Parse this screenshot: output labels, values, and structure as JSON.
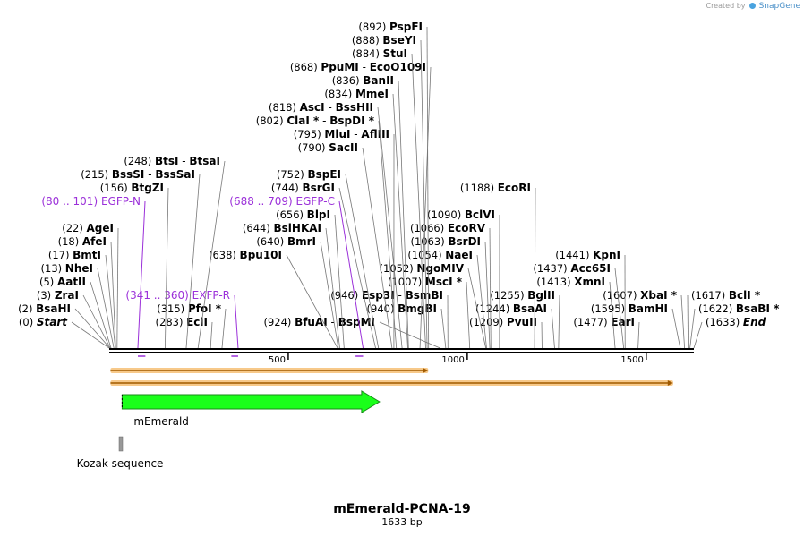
{
  "header": {
    "created_by": "Created by",
    "brand": "SnapGene"
  },
  "map": {
    "title": "mEmerald-PCNA-19",
    "length_label": "1633 bp",
    "total_bp": 1633
  },
  "colors": {
    "primer": "#9b30d9",
    "feature_green": "#1aff1a",
    "kozak": "#999999",
    "orf_fill": "#f7c98a",
    "orf_line": "#a05a00"
  },
  "ticks": [
    {
      "bp": 500,
      "label": "500"
    },
    {
      "bp": 1000,
      "label": "1000"
    },
    {
      "bp": 1500,
      "label": "1500"
    }
  ],
  "orfs": [
    {
      "start": 1,
      "end": 891,
      "direction": "forward"
    },
    {
      "start": 1,
      "end": 1575,
      "direction": "forward"
    }
  ],
  "features": [
    {
      "name": "mEmerald",
      "start": 36,
      "end": 755,
      "color": "#1aff1a",
      "type": "arrow"
    },
    {
      "name": "Kozak sequence",
      "start": 31,
      "end": 40,
      "color": "#999999",
      "type": "box"
    }
  ],
  "labels": [
    {
      "pos": "(0)",
      "name": "Start",
      "site": 0,
      "side": "L",
      "row": 0,
      "italic": true
    },
    {
      "pos": "(2)",
      "name": "BsaHI",
      "site": 2,
      "side": "L",
      "row": 1
    },
    {
      "pos": "(3)",
      "name": "ZraI",
      "site": 3,
      "side": "L",
      "row": 2
    },
    {
      "pos": "(5)",
      "name": "AatII",
      "site": 5,
      "side": "L",
      "row": 3
    },
    {
      "pos": "(13)",
      "name": "NheI",
      "site": 13,
      "side": "L",
      "row": 4
    },
    {
      "pos": "(17)",
      "name": "BmtI",
      "site": 17,
      "side": "L",
      "row": 5
    },
    {
      "pos": "(18)",
      "name": "AfeI",
      "site": 18,
      "side": "L",
      "row": 6
    },
    {
      "pos": "(22)",
      "name": "AgeI",
      "site": 22,
      "side": "L",
      "row": 7
    },
    {
      "pos": "(80 .. 101)",
      "name": "EGFP-N",
      "site": 80,
      "side": "L",
      "row": 9,
      "primer": true
    },
    {
      "pos": "(156)",
      "name": "BtgZI",
      "site": 156,
      "side": "L",
      "row": 10
    },
    {
      "pos": "(215)",
      "name": "BssSI",
      "name2": "BssSaI",
      "site": 215,
      "side": "L",
      "row": 11
    },
    {
      "pos": "(248)",
      "name": "BtsI",
      "name2": "BtsaI",
      "site": 248,
      "side": "L",
      "row": 12
    },
    {
      "pos": "(283)",
      "name": "EciI",
      "site": 283,
      "side": "L",
      "row": 0
    },
    {
      "pos": "(315)",
      "name": "PfoI",
      "star": true,
      "site": 315,
      "side": "L",
      "row": 1
    },
    {
      "pos": "(341 .. 360)",
      "name": "EXFP-R",
      "site": 360,
      "side": "L",
      "row": 2,
      "primer": true
    },
    {
      "pos": "(638)",
      "name": "Bpu10I",
      "site": 638,
      "side": "L",
      "row": 5
    },
    {
      "pos": "(640)",
      "name": "BmrI",
      "site": 640,
      "side": "L",
      "row": 6
    },
    {
      "pos": "(644)",
      "name": "BsiHKAI",
      "site": 644,
      "side": "L",
      "row": 7
    },
    {
      "pos": "(656)",
      "name": "BlpI",
      "site": 656,
      "side": "L",
      "row": 8
    },
    {
      "pos": "(688 .. 709)",
      "name": "EGFP-C",
      "site": 709,
      "side": "L",
      "row": 9,
      "primer": true
    },
    {
      "pos": "(744)",
      "name": "BsrGI",
      "site": 744,
      "side": "L",
      "row": 10
    },
    {
      "pos": "(752)",
      "name": "BspEI",
      "site": 752,
      "side": "L",
      "row": 11
    },
    {
      "pos": "(790)",
      "name": "SacII",
      "site": 790,
      "side": "L",
      "row": 13
    },
    {
      "pos": "(795)",
      "name": "MluI",
      "name2": "AflIII",
      "site": 795,
      "side": "L",
      "row": 14
    },
    {
      "pos": "(802)",
      "name": "ClaI",
      "star": true,
      "name2": "BspDI",
      "star2": true,
      "site": 802,
      "side": "L",
      "row": 15
    },
    {
      "pos": "(818)",
      "name": "AscI",
      "name2": "BssHII",
      "site": 818,
      "side": "L",
      "row": 16
    },
    {
      "pos": "(834)",
      "name": "MmeI",
      "site": 834,
      "side": "L",
      "row": 17
    },
    {
      "pos": "(836)",
      "name": "BanII",
      "site": 836,
      "side": "L",
      "row": 18
    },
    {
      "pos": "(868)",
      "name": "PpuMI",
      "name2": "EcoO109I",
      "site": 868,
      "side": "L",
      "row": 19
    },
    {
      "pos": "(884)",
      "name": "StuI",
      "site": 884,
      "side": "L",
      "row": 20
    },
    {
      "pos": "(888)",
      "name": "BseYI",
      "site": 888,
      "side": "L",
      "row": 21
    },
    {
      "pos": "(892)",
      "name": "PspFI",
      "site": 892,
      "side": "L",
      "row": 22
    },
    {
      "pos": "(924)",
      "name": "BfuAI",
      "name2": "BspMI",
      "site": 924,
      "side": "L",
      "row": 0
    },
    {
      "pos": "(940)",
      "name": "BmgBI",
      "site": 940,
      "side": "L",
      "row": 1
    },
    {
      "pos": "(946)",
      "name": "Esp3I",
      "name2": "BsmBI",
      "site": 946,
      "side": "L",
      "row": 2
    },
    {
      "pos": "(1007)",
      "name": "MscI",
      "star": true,
      "site": 1007,
      "side": "L",
      "row": 3
    },
    {
      "pos": "(1052)",
      "name": "NgoMIV",
      "site": 1052,
      "side": "L",
      "row": 4
    },
    {
      "pos": "(1054)",
      "name": "NaeI",
      "site": 1054,
      "side": "L",
      "row": 5
    },
    {
      "pos": "(1063)",
      "name": "BsrDI",
      "site": 1063,
      "side": "L",
      "row": 6
    },
    {
      "pos": "(1066)",
      "name": "EcoRV",
      "site": 1066,
      "side": "L",
      "row": 7
    },
    {
      "pos": "(1090)",
      "name": "BclVI",
      "site": 1090,
      "side": "L",
      "row": 8
    },
    {
      "pos": "(1188)",
      "name": "EcoRI",
      "site": 1188,
      "side": "L",
      "row": 10
    },
    {
      "pos": "(1209)",
      "name": "PvuII",
      "site": 1209,
      "side": "L",
      "row": 0
    },
    {
      "pos": "(1244)",
      "name": "BsaAI",
      "site": 1244,
      "side": "L",
      "row": 1
    },
    {
      "pos": "(1255)",
      "name": "BglII",
      "site": 1255,
      "side": "L",
      "row": 2
    },
    {
      "pos": "(1413)",
      "name": "XmnI",
      "site": 1413,
      "side": "L",
      "row": 3
    },
    {
      "pos": "(1437)",
      "name": "Acc65I",
      "site": 1437,
      "side": "L",
      "row": 4
    },
    {
      "pos": "(1441)",
      "name": "KpnI",
      "site": 1441,
      "side": "L",
      "row": 5
    },
    {
      "pos": "(1477)",
      "name": "EarI",
      "site": 1477,
      "side": "L",
      "row": 0
    },
    {
      "pos": "(1595)",
      "name": "BamHI",
      "site": 1595,
      "side": "L",
      "row": 1
    },
    {
      "pos": "(1607)",
      "name": "XbaI",
      "star": true,
      "site": 1607,
      "side": "L",
      "row": 2
    },
    {
      "pos": "(1617)",
      "name": "BclI",
      "star": true,
      "site": 1617,
      "side": "R",
      "row": 2
    },
    {
      "pos": "(1622)",
      "name": "BsaBI",
      "star": true,
      "site": 1622,
      "side": "R",
      "row": 1
    },
    {
      "pos": "(1633)",
      "name": "End",
      "site": 1633,
      "side": "R",
      "row": 0,
      "italic": true
    }
  ]
}
